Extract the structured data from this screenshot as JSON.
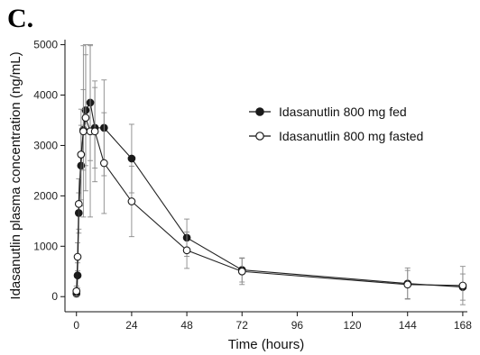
{
  "panel_label": "C.",
  "chart_data": {
    "type": "line",
    "xlabel": "Time (hours)",
    "ylabel": "Idasanutlin plasma concentration (ng/mL)",
    "xlim": [
      -5,
      170
    ],
    "ylim": [
      -300,
      5100
    ],
    "xticks": [
      0,
      24,
      48,
      72,
      96,
      120,
      144,
      168
    ],
    "yticks": [
      0,
      1000,
      2000,
      3000,
      4000,
      5000
    ],
    "grid": false,
    "legend_position": "upper-right",
    "series": [
      {
        "name": "Idasanutlin 800 mg fed",
        "marker": "filled-circle",
        "color": "#1a1a1a",
        "x": [
          0,
          0.5,
          1,
          2,
          3,
          4,
          6,
          8,
          12,
          24,
          48,
          72,
          144,
          168
        ],
        "y": [
          60,
          420,
          1660,
          2600,
          3310,
          3700,
          3850,
          3350,
          3350,
          2740,
          1170,
          530,
          260,
          190
        ],
        "err": [
          60,
          250,
          400,
          800,
          800,
          1100,
          1150,
          800,
          950,
          680,
          370,
          240,
          310,
          260
        ]
      },
      {
        "name": "Idasanutlin 800 mg fasted",
        "marker": "open-circle",
        "color": "#1a1a1a",
        "x": [
          0,
          0.5,
          1,
          2,
          3,
          4,
          6,
          8,
          12,
          24,
          48,
          72,
          144,
          168
        ],
        "y": [
          110,
          790,
          1840,
          2820,
          3280,
          3550,
          3280,
          3280,
          2650,
          1890,
          920,
          500,
          240,
          220
        ],
        "err": [
          100,
          280,
          500,
          900,
          1700,
          1450,
          1700,
          1000,
          1000,
          700,
          360,
          260,
          280,
          380
        ]
      }
    ]
  }
}
